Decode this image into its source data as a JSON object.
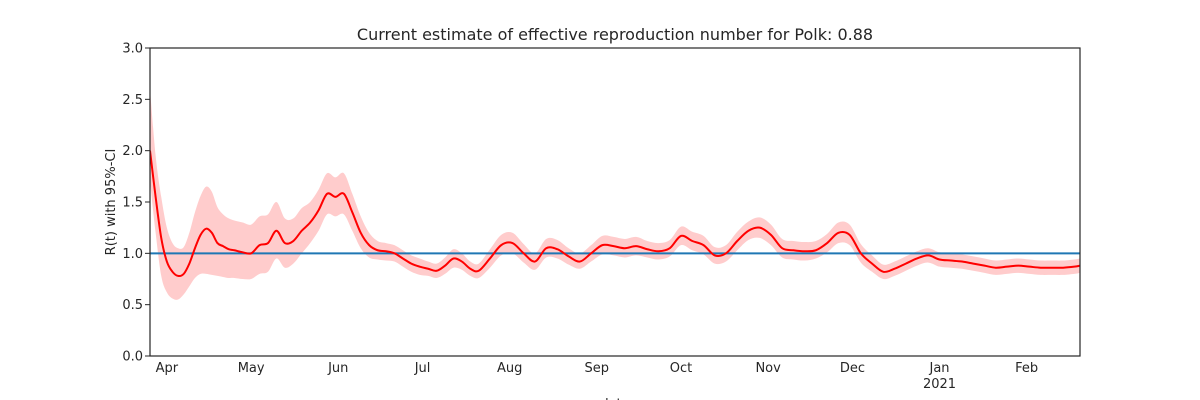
{
  "chart_data": {
    "type": "line",
    "title": "Current estimate of effective reproduction number for Polk: 0.88",
    "xlabel": "date",
    "ylabel": "R(t) with 95%-CI",
    "xlim": [
      "2020-03-26",
      "2021-02-20"
    ],
    "ylim": [
      0.0,
      3.0
    ],
    "grid": false,
    "y_ticks": [
      {
        "value": 0.0,
        "label": "0.0"
      },
      {
        "value": 0.5,
        "label": "0.5"
      },
      {
        "value": 1.0,
        "label": "1.0"
      },
      {
        "value": 1.5,
        "label": "1.5"
      },
      {
        "value": 2.0,
        "label": "2.0"
      },
      {
        "value": 2.5,
        "label": "2.5"
      },
      {
        "value": 3.0,
        "label": "3.0"
      }
    ],
    "x_ticks": [
      {
        "date": "2020-04-01",
        "label": "Apr"
      },
      {
        "date": "2020-05-01",
        "label": "May"
      },
      {
        "date": "2020-06-01",
        "label": "Jun"
      },
      {
        "date": "2020-07-01",
        "label": "Jul"
      },
      {
        "date": "2020-08-01",
        "label": "Aug"
      },
      {
        "date": "2020-09-01",
        "label": "Sep"
      },
      {
        "date": "2020-10-01",
        "label": "Oct"
      },
      {
        "date": "2020-11-01",
        "label": "Nov"
      },
      {
        "date": "2020-12-01",
        "label": "Dec"
      },
      {
        "date": "2021-01-01",
        "label": "Jan",
        "sublabel": "2021"
      },
      {
        "date": "2021-02-01",
        "label": "Feb"
      }
    ],
    "reference_line": {
      "y": 1.0,
      "color": "#1f77b4"
    },
    "colors": {
      "line": "#ff0000",
      "band": "#ffcccc",
      "axes": "#262626"
    },
    "series": [
      {
        "x": [
          "2020-03-26",
          "2020-03-28",
          "2020-03-30",
          "2020-04-01",
          "2020-04-03",
          "2020-04-05",
          "2020-04-07",
          "2020-04-09",
          "2020-04-11",
          "2020-04-13",
          "2020-04-15",
          "2020-04-17",
          "2020-04-19",
          "2020-04-21",
          "2020-04-23",
          "2020-04-25",
          "2020-04-28",
          "2020-05-01",
          "2020-05-04",
          "2020-05-07",
          "2020-05-10",
          "2020-05-13",
          "2020-05-16",
          "2020-05-19",
          "2020-05-22",
          "2020-05-25",
          "2020-05-28",
          "2020-05-31",
          "2020-06-03",
          "2020-06-06",
          "2020-06-09",
          "2020-06-12",
          "2020-06-15",
          "2020-06-18",
          "2020-06-21",
          "2020-06-24",
          "2020-06-27",
          "2020-06-30",
          "2020-07-03",
          "2020-07-06",
          "2020-07-09",
          "2020-07-12",
          "2020-07-15",
          "2020-07-18",
          "2020-07-21",
          "2020-07-25",
          "2020-07-29",
          "2020-08-02",
          "2020-08-06",
          "2020-08-10",
          "2020-08-14",
          "2020-08-18",
          "2020-08-22",
          "2020-08-26",
          "2020-08-30",
          "2020-09-03",
          "2020-09-07",
          "2020-09-11",
          "2020-09-15",
          "2020-09-19",
          "2020-09-23",
          "2020-09-27",
          "2020-10-01",
          "2020-10-05",
          "2020-10-09",
          "2020-10-13",
          "2020-10-17",
          "2020-10-21",
          "2020-10-25",
          "2020-10-29",
          "2020-11-02",
          "2020-11-06",
          "2020-11-10",
          "2020-11-14",
          "2020-11-18",
          "2020-11-22",
          "2020-11-26",
          "2020-11-30",
          "2020-12-04",
          "2020-12-08",
          "2020-12-12",
          "2020-12-16",
          "2020-12-20",
          "2020-12-24",
          "2020-12-28",
          "2021-01-01",
          "2021-01-05",
          "2021-01-09",
          "2021-01-13",
          "2021-01-17",
          "2021-01-21",
          "2021-01-25",
          "2021-01-29",
          "2021-02-02",
          "2021-02-06",
          "2021-02-10",
          "2021-02-14",
          "2021-02-18",
          "2021-02-20"
        ],
        "y": [
          2.0,
          1.55,
          1.15,
          0.92,
          0.82,
          0.78,
          0.8,
          0.9,
          1.05,
          1.18,
          1.24,
          1.2,
          1.1,
          1.07,
          1.04,
          1.03,
          1.01,
          1.0,
          1.08,
          1.1,
          1.22,
          1.1,
          1.12,
          1.22,
          1.3,
          1.42,
          1.58,
          1.55,
          1.58,
          1.4,
          1.2,
          1.08,
          1.03,
          1.02,
          1.0,
          0.95,
          0.9,
          0.87,
          0.85,
          0.83,
          0.88,
          0.95,
          0.92,
          0.85,
          0.83,
          0.95,
          1.08,
          1.1,
          1.0,
          0.92,
          1.05,
          1.04,
          0.97,
          0.92,
          1.0,
          1.08,
          1.07,
          1.05,
          1.07,
          1.04,
          1.02,
          1.05,
          1.17,
          1.12,
          1.08,
          0.98,
          1.0,
          1.12,
          1.22,
          1.25,
          1.18,
          1.05,
          1.03,
          1.02,
          1.03,
          1.1,
          1.2,
          1.18,
          1.0,
          0.9,
          0.82,
          0.85,
          0.9,
          0.95,
          0.98,
          0.94,
          0.93,
          0.92,
          0.9,
          0.88,
          0.86,
          0.87,
          0.88,
          0.87,
          0.86,
          0.86,
          0.86,
          0.87,
          0.88
        ],
        "lower": [
          1.7,
          1.2,
          0.78,
          0.62,
          0.56,
          0.55,
          0.6,
          0.68,
          0.76,
          0.8,
          0.8,
          0.79,
          0.78,
          0.77,
          0.76,
          0.76,
          0.75,
          0.75,
          0.8,
          0.82,
          0.95,
          0.86,
          0.9,
          1.0,
          1.1,
          1.22,
          1.38,
          1.36,
          1.38,
          1.22,
          1.05,
          0.96,
          0.94,
          0.93,
          0.92,
          0.87,
          0.82,
          0.79,
          0.78,
          0.76,
          0.8,
          0.86,
          0.84,
          0.78,
          0.76,
          0.86,
          0.98,
          1.0,
          0.91,
          0.84,
          0.96,
          0.95,
          0.89,
          0.85,
          0.92,
          0.99,
          0.98,
          0.96,
          0.98,
          0.96,
          0.94,
          0.97,
          1.08,
          1.03,
          0.99,
          0.9,
          0.92,
          1.03,
          1.13,
          1.15,
          1.08,
          0.96,
          0.94,
          0.93,
          0.95,
          1.01,
          1.1,
          1.08,
          0.91,
          0.82,
          0.75,
          0.78,
          0.83,
          0.88,
          0.91,
          0.87,
          0.86,
          0.85,
          0.83,
          0.81,
          0.79,
          0.8,
          0.81,
          0.8,
          0.79,
          0.79,
          0.79,
          0.8,
          0.81
        ],
        "upper": [
          2.6,
          1.95,
          1.55,
          1.25,
          1.1,
          1.05,
          1.06,
          1.2,
          1.4,
          1.56,
          1.65,
          1.6,
          1.45,
          1.38,
          1.34,
          1.32,
          1.3,
          1.28,
          1.36,
          1.38,
          1.5,
          1.34,
          1.34,
          1.44,
          1.5,
          1.62,
          1.78,
          1.74,
          1.78,
          1.58,
          1.36,
          1.2,
          1.12,
          1.1,
          1.08,
          1.03,
          0.98,
          0.95,
          0.92,
          0.9,
          0.96,
          1.04,
          1.0,
          0.92,
          0.9,
          1.04,
          1.18,
          1.2,
          1.09,
          1.0,
          1.14,
          1.13,
          1.05,
          1.0,
          1.08,
          1.17,
          1.16,
          1.14,
          1.16,
          1.12,
          1.1,
          1.13,
          1.26,
          1.21,
          1.17,
          1.06,
          1.08,
          1.21,
          1.31,
          1.35,
          1.28,
          1.14,
          1.12,
          1.11,
          1.12,
          1.19,
          1.3,
          1.28,
          1.09,
          0.98,
          0.89,
          0.92,
          0.97,
          1.02,
          1.05,
          1.01,
          1.0,
          0.99,
          0.97,
          0.95,
          0.93,
          0.94,
          0.95,
          0.94,
          0.93,
          0.93,
          0.93,
          0.94,
          0.95
        ]
      }
    ]
  }
}
